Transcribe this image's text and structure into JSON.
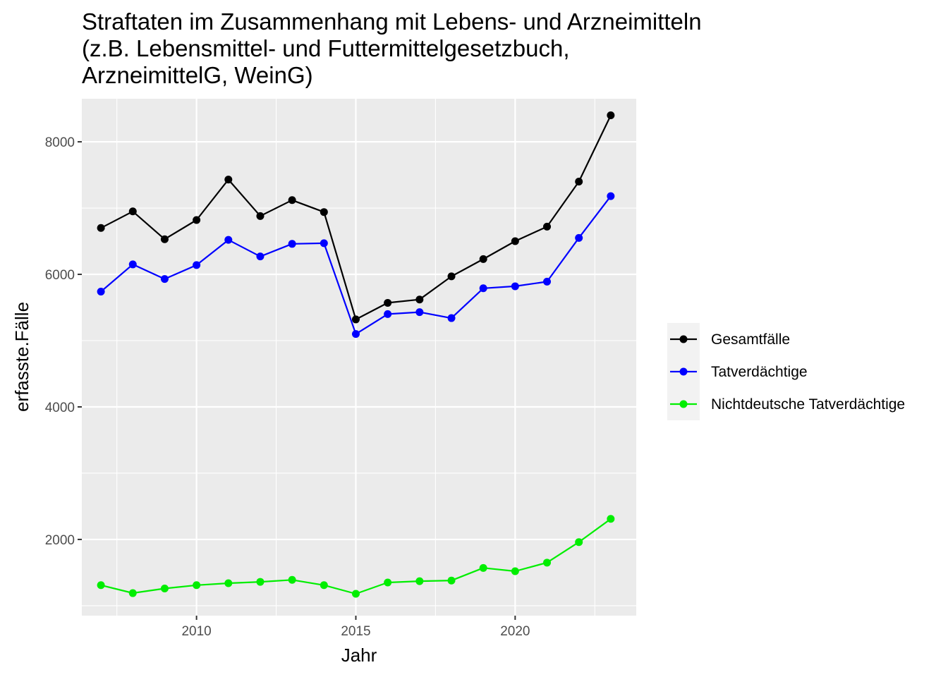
{
  "chart_data": {
    "type": "line",
    "title_lines": [
      "Straftaten im Zusammenhang mit Lebens- und Arzneimitteln",
      "(z.B. Lebensmittel- und Futtermittelgesetzbuch,",
      "ArzneimittelG, WeinG)"
    ],
    "xlabel": "Jahr",
    "ylabel": "erfasste.Fälle",
    "x": [
      2007,
      2008,
      2009,
      2010,
      2011,
      2012,
      2013,
      2014,
      2015,
      2016,
      2017,
      2018,
      2019,
      2020,
      2021,
      2022,
      2023
    ],
    "xlim": [
      2006.4,
      2023.8
    ],
    "ylim": [
      850,
      8650
    ],
    "x_ticks": [
      2010,
      2015,
      2020
    ],
    "x_tick_labels": [
      "2010",
      "2015",
      "2020"
    ],
    "y_ticks": [
      2000,
      4000,
      6000,
      8000
    ],
    "y_tick_labels": [
      "2000",
      "4000",
      "6000",
      "8000"
    ],
    "grid": true,
    "legend_position": "right",
    "series": [
      {
        "name": "Gesamtfälle",
        "color": "#000000",
        "values": [
          6700,
          6950,
          6530,
          6820,
          7430,
          6880,
          7120,
          6940,
          5320,
          5570,
          5620,
          5970,
          6230,
          6500,
          6720,
          7400,
          8400
        ]
      },
      {
        "name": "Tatverdächtige",
        "color": "#0000ff",
        "values": [
          5740,
          6150,
          5930,
          6140,
          6520,
          6270,
          6460,
          6470,
          5100,
          5400,
          5430,
          5340,
          5790,
          5820,
          5890,
          6550,
          7180
        ]
      },
      {
        "name": "Nichtdeutsche Tatverdächtige",
        "color": "#00ee00",
        "values": [
          1310,
          1190,
          1260,
          1310,
          1340,
          1360,
          1390,
          1310,
          1180,
          1350,
          1370,
          1380,
          1570,
          1520,
          1650,
          1960,
          2310
        ]
      }
    ]
  }
}
